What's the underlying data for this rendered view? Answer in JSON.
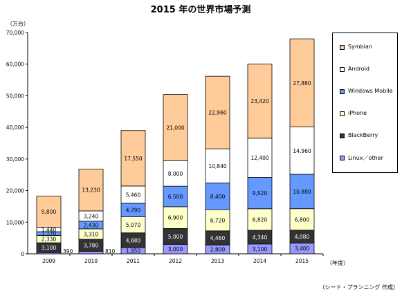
{
  "chart_data": {
    "type": "bar",
    "stacked": true,
    "title": "2015 年の世界市場予測",
    "y_unit_label": "（万台）",
    "x_unit_label": "（年度）",
    "source_note": "（シード・プランニング 作成）",
    "categories": [
      "2009",
      "2010",
      "2011",
      "2012",
      "2013",
      "2014",
      "2015"
    ],
    "ylim": [
      0,
      70000
    ],
    "yticks": [
      "0",
      "10,000",
      "20,000",
      "30,000",
      "40,000",
      "50,000",
      "60,000",
      "70,000"
    ],
    "series": [
      {
        "name": "Linux／other",
        "color": "#9999ff",
        "values": [
          390,
          810,
          1950,
          3000,
          2800,
          3100,
          3400
        ],
        "labels": [
          "390",
          "810",
          "1,950",
          "3,000",
          "2,800",
          "3,100",
          "3,400"
        ]
      },
      {
        "name": "BlackBerry",
        "color": "#333333",
        "values": [
          3100,
          3780,
          4680,
          5000,
          4460,
          4340,
          4080
        ],
        "labels": [
          "3,100",
          "3,780",
          "4,680",
          "5,000",
          "4,460",
          "4,340",
          "4,080"
        ]
      },
      {
        "name": "iPhone",
        "color": "#ffffcc",
        "values": [
          2330,
          3310,
          5070,
          6900,
          6720,
          6820,
          6800
        ],
        "labels": [
          "2,330",
          "3,310",
          "5,070",
          "6,900",
          "6,720",
          "6,820",
          "6,800"
        ]
      },
      {
        "name": "Windows Mobile",
        "color": "#6699ff",
        "values": [
          1170,
          2430,
          4290,
          6500,
          8400,
          9920,
          10880
        ],
        "labels": [
          "1,170",
          "2,430",
          "4,290",
          "6,500",
          "8,400",
          "9,920",
          "10,880"
        ]
      },
      {
        "name": "Android",
        "color": "#ffffff",
        "values": [
          1440,
          3240,
          5460,
          8000,
          10840,
          12400,
          14960
        ],
        "labels": [
          "1,440",
          "3,240",
          "5,460",
          "8,000",
          "10,840",
          "12,400",
          "14,960"
        ]
      },
      {
        "name": "Symbian",
        "color": "#ffcc99",
        "values": [
          9800,
          13230,
          17550,
          21000,
          22960,
          23420,
          27880
        ],
        "labels": [
          "9,800",
          "13,230",
          "17,550",
          "21,000",
          "22,960",
          "23,420",
          "27,880"
        ]
      }
    ],
    "legend_order": [
      "Symbian",
      "Android",
      "Windows Mobile",
      "iPhone",
      "BlackBerry",
      "Linux／other"
    ]
  }
}
